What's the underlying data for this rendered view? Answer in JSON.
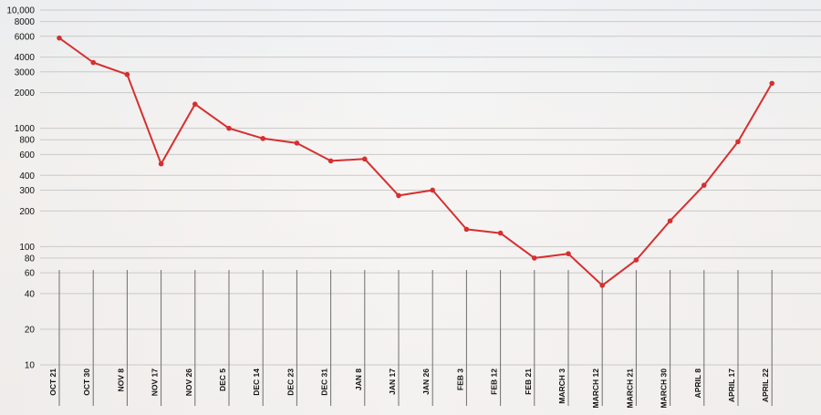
{
  "chart_data": {
    "type": "line",
    "title": "",
    "xlabel": "",
    "ylabel": "",
    "yscale": "log",
    "ylim": [
      10,
      10000
    ],
    "grid": true,
    "series_color": "#d62f2f",
    "yticks": [
      10,
      20,
      40,
      60,
      80,
      100,
      200,
      300,
      400,
      600,
      800,
      1000,
      2000,
      3000,
      4000,
      6000,
      8000,
      10000
    ],
    "ytick_labels": [
      "10",
      "20",
      "40",
      "60",
      "80",
      "100",
      "200",
      "300",
      "400",
      "600",
      "800",
      "1000",
      "2000",
      "3000",
      "4000",
      "6000",
      "8000",
      "10,000"
    ],
    "categories": [
      "OCT 21",
      "OCT 30",
      "NOV 8",
      "NOV 17",
      "NOV 26",
      "DEC 5",
      "DEC 14",
      "DEC 23",
      "DEC 31",
      "JAN 8",
      "JAN 17",
      "JAN 26",
      "FEB 3",
      "FEB 12",
      "FEB 21",
      "MARCH 3",
      "MARCH 12",
      "MARCH 21",
      "MARCH 30",
      "APRIL 8",
      "APRIL 17",
      "APRIL 22"
    ],
    "values": [
      5800,
      3600,
      2850,
      500,
      1600,
      1000,
      820,
      750,
      530,
      550,
      270,
      300,
      140,
      130,
      80,
      87,
      47,
      77,
      165,
      330,
      770,
      2400
    ]
  }
}
